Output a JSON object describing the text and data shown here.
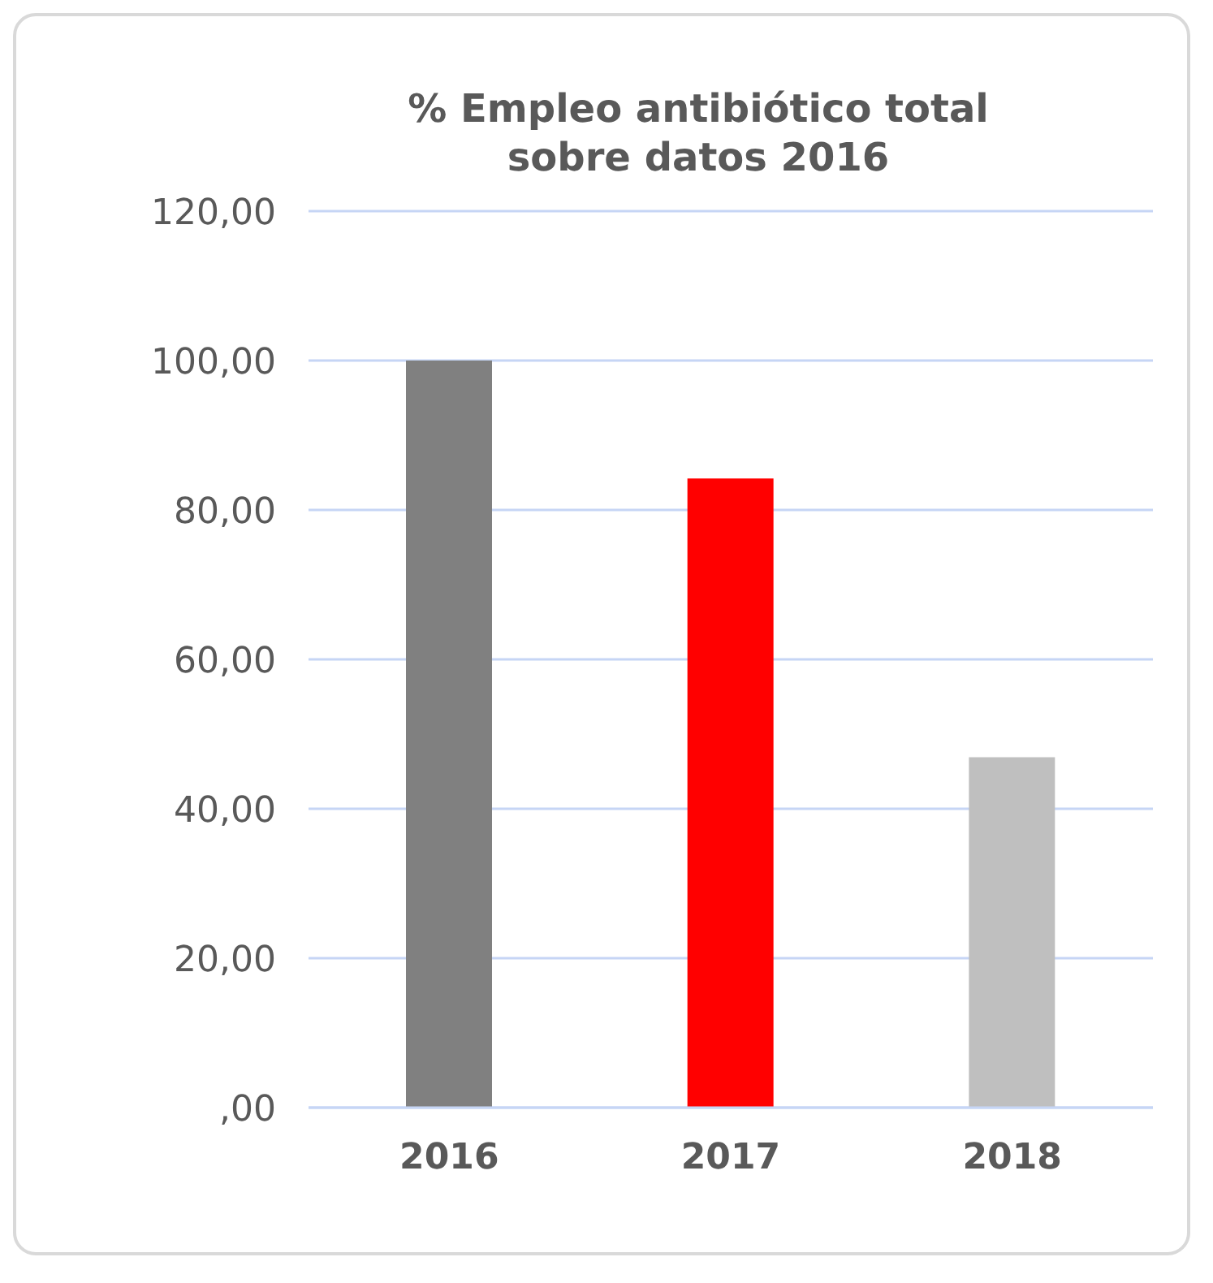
{
  "chart_data": {
    "type": "bar",
    "title": "% Empleo antibiótico total sobre datos 2016",
    "categories": [
      "2016",
      "2017",
      "2018"
    ],
    "values": [
      100,
      84.2,
      46.9
    ],
    "colors": [
      "#808080",
      "#ff0000",
      "#bfbfbf"
    ],
    "ylim": [
      0,
      120
    ],
    "yticks": [
      {
        "value": 0,
        "label": ",00"
      },
      {
        "value": 20,
        "label": "20,00"
      },
      {
        "value": 40,
        "label": "40,00"
      },
      {
        "value": 60,
        "label": "60,00"
      },
      {
        "value": 80,
        "label": "80,00"
      },
      {
        "value": 100,
        "label": "100,00"
      },
      {
        "value": 120,
        "label": "120,00"
      }
    ],
    "grid": "y",
    "legend": false
  }
}
